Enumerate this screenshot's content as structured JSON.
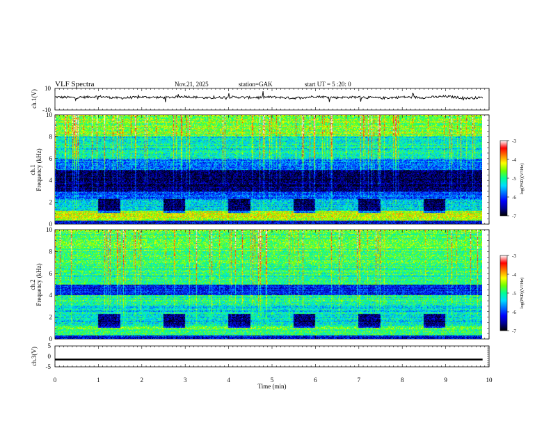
{
  "header": {
    "title": "VLF Spectra",
    "date": "Nov.21, 2025",
    "station": "station=GAK",
    "start_ut": "start UT = 5 :20: 0"
  },
  "colors": {
    "frame": "#000000",
    "colormap": [
      "#000000",
      "#0000b4",
      "#0000ff",
      "#0078ff",
      "#00e6ff",
      "#00ff96",
      "#64ff00",
      "#ffff00",
      "#ff8000",
      "#ff0000",
      "#ffffff"
    ]
  },
  "chart_data": [
    {
      "type": "line",
      "panel": "ch1_waveform",
      "ylabel": "ch.1(V)",
      "ylim": [
        -10,
        10
      ],
      "yticks": [
        "10",
        "-10"
      ],
      "xlim": [
        0,
        10
      ],
      "x": [
        0.0,
        0.5,
        1.0,
        1.5,
        2.0,
        2.5,
        3.0,
        3.5,
        4.0,
        4.5,
        5.0,
        5.5,
        6.0,
        6.5,
        7.0,
        7.5,
        8.0,
        8.5,
        9.0,
        9.5,
        9.85
      ],
      "values": [
        2,
        1.5,
        2.5,
        1,
        2,
        1.5,
        2.5,
        1,
        2,
        1.5,
        2,
        1,
        2.5,
        1.5,
        2,
        1,
        2,
        1.5,
        2.5,
        1,
        1.5
      ]
    },
    {
      "type": "heatmap",
      "panel": "ch1_spectrogram",
      "ylabel": "ch.1\nFrequency (kHz)",
      "ylabel_line1": "ch.1",
      "ylabel_line2": "Frequency (kHz)",
      "ylim": [
        0,
        10
      ],
      "yticks": [
        "0",
        "2",
        "4",
        "6",
        "8",
        "10"
      ],
      "xlim": [
        0,
        9.85
      ],
      "colorbar": {
        "label": "log(PSD)(V²/Hz)",
        "range": [
          -7,
          -3
        ],
        "ticks": [
          "-3",
          "-4",
          "-5",
          "-6",
          "-7"
        ]
      },
      "bands_kHz": [
        {
          "from": 0,
          "to": 0.3,
          "level": -6.3
        },
        {
          "from": 0.3,
          "to": 1.2,
          "level": -4.4
        },
        {
          "from": 1.2,
          "to": 2.3,
          "level": -5.4
        },
        {
          "from": 2.3,
          "to": 3.0,
          "level": -6.0
        },
        {
          "from": 3.0,
          "to": 5.0,
          "level": -6.7
        },
        {
          "from": 5.0,
          "to": 6.0,
          "level": -5.8
        },
        {
          "from": 6.0,
          "to": 8.0,
          "level": -5.2
        },
        {
          "from": 8.0,
          "to": 10.0,
          "level": -4.6
        }
      ],
      "quiet_blocks_min": [
        [
          1.0,
          1.5
        ],
        [
          2.5,
          3.0
        ],
        [
          4.0,
          4.5
        ],
        [
          5.5,
          6.0
        ],
        [
          7.0,
          7.5
        ],
        [
          8.5,
          9.0
        ]
      ]
    },
    {
      "type": "heatmap",
      "panel": "ch2_spectrogram",
      "ylabel_line1": "ch.2",
      "ylabel_line2": "Frequency (kHz)",
      "ylim": [
        0,
        10
      ],
      "yticks": [
        "0",
        "2",
        "4",
        "6",
        "8",
        "10"
      ],
      "xlim": [
        0,
        9.85
      ],
      "colorbar": {
        "label": "log(PSD)(V²/Hz)",
        "range": [
          -7,
          -3
        ],
        "ticks": [
          "-3",
          "-4",
          "-5",
          "-6",
          "-7"
        ]
      },
      "bands_kHz": [
        {
          "from": 0,
          "to": 0.3,
          "level": -6.3
        },
        {
          "from": 0.3,
          "to": 1.2,
          "level": -4.8
        },
        {
          "from": 1.2,
          "to": 3.0,
          "level": -5.3
        },
        {
          "from": 3.0,
          "to": 4.0,
          "level": -5.0
        },
        {
          "from": 4.0,
          "to": 5.0,
          "level": -6.2
        },
        {
          "from": 5.0,
          "to": 7.0,
          "level": -5.0
        },
        {
          "from": 7.0,
          "to": 10.0,
          "level": -4.8
        }
      ],
      "quiet_blocks_min": [
        [
          1.0,
          1.5
        ],
        [
          2.5,
          3.0
        ],
        [
          4.0,
          4.5
        ],
        [
          5.5,
          6.0
        ],
        [
          7.0,
          7.5
        ],
        [
          8.5,
          9.0
        ]
      ]
    },
    {
      "type": "line",
      "panel": "ch3_waveform",
      "ylabel": "ch.3(V)",
      "ylim": [
        -5,
        5
      ],
      "yticks": [
        "5",
        "0",
        "-5"
      ],
      "xlim": [
        0,
        10
      ],
      "x": [
        0,
        9.85
      ],
      "values": [
        -1.5,
        -1.5
      ]
    }
  ],
  "xaxis": {
    "label": "Time (min)",
    "ticks": [
      "0",
      "1",
      "2",
      "3",
      "4",
      "5",
      "6",
      "7",
      "8",
      "9",
      "10"
    ]
  }
}
